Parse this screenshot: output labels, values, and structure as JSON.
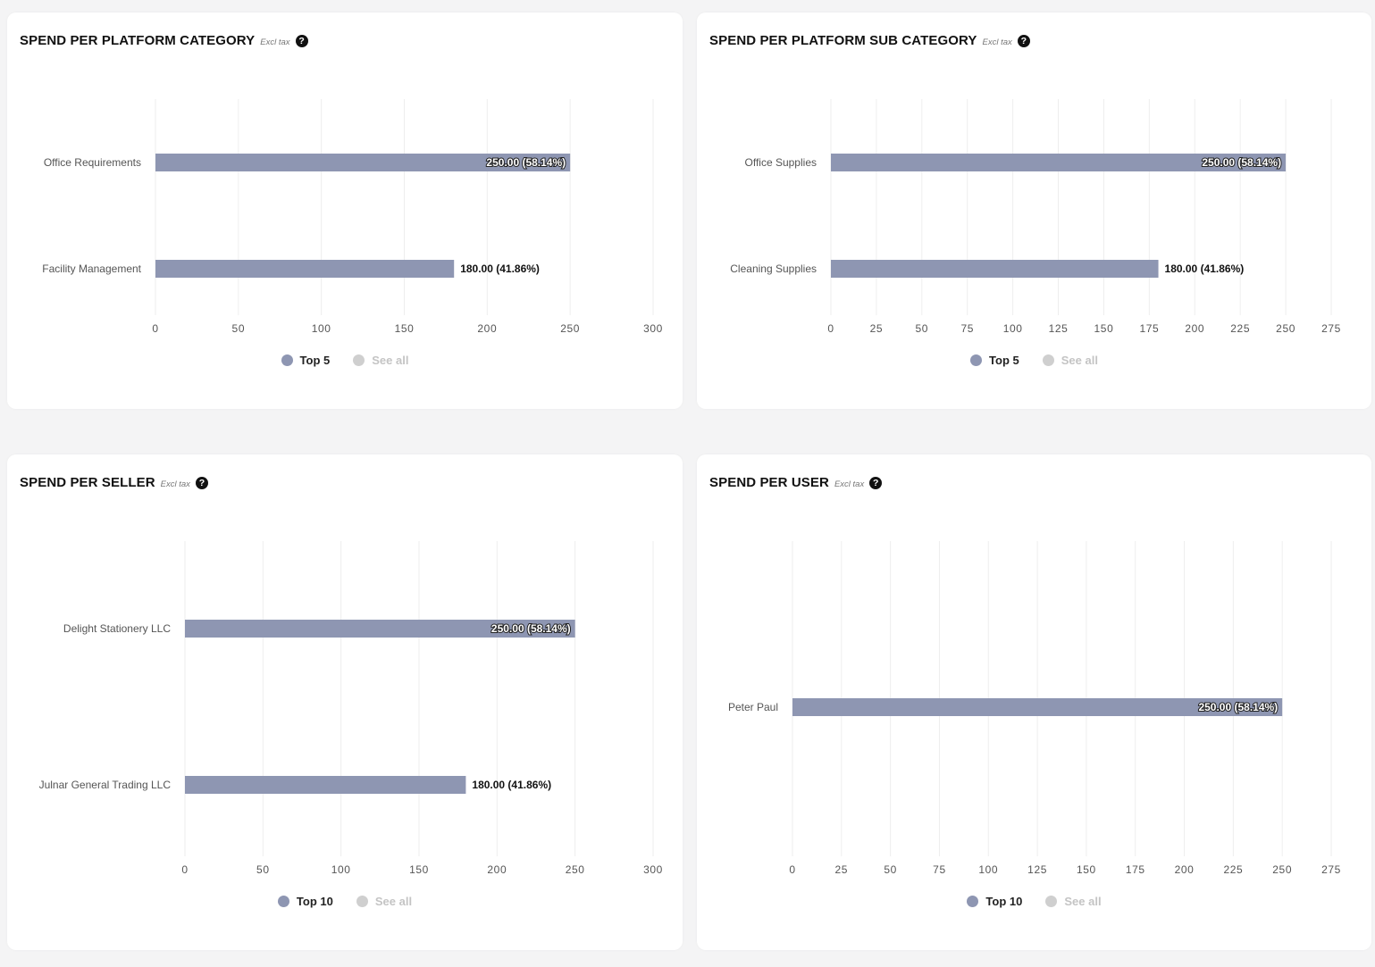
{
  "colors": {
    "bar": "#8e96b2",
    "inactive": "#cfcfcf",
    "grid": "#eeeeee",
    "axis_text": "#555555",
    "label_text": "#555555"
  },
  "panels": [
    {
      "title": "SPEND PER PLATFORM CATEGORY",
      "subtitle": "Excl tax",
      "help_icon": "question-circle-icon",
      "legend": [
        {
          "label": "Top 5",
          "active": true
        },
        {
          "label": "See all",
          "active": false
        }
      ]
    },
    {
      "title": "SPEND PER PLATFORM SUB CATEGORY",
      "subtitle": "Excl tax",
      "help_icon": "question-circle-icon",
      "legend": [
        {
          "label": "Top 5",
          "active": true
        },
        {
          "label": "See all",
          "active": false
        }
      ]
    },
    {
      "title": "SPEND PER SELLER",
      "subtitle": "Excl tax",
      "help_icon": "question-circle-icon",
      "legend": [
        {
          "label": "Top 10",
          "active": true
        },
        {
          "label": "See all",
          "active": false
        }
      ]
    },
    {
      "title": "SPEND PER USER",
      "subtitle": "Excl tax",
      "help_icon": "question-circle-icon",
      "legend": [
        {
          "label": "Top 10",
          "active": true
        },
        {
          "label": "See all",
          "active": false
        }
      ]
    }
  ],
  "chart_data": [
    {
      "type": "bar",
      "orientation": "horizontal",
      "title": "SPEND PER PLATFORM CATEGORY",
      "categories": [
        "Office Requirements",
        "Facility Management"
      ],
      "values": [
        250,
        180
      ],
      "data_labels": [
        "250.00 (58.14%)",
        "180.00 (41.86%)"
      ],
      "xlim": [
        0,
        300
      ],
      "xticks": [
        0,
        50,
        100,
        150,
        200,
        250,
        300
      ],
      "grid": true,
      "legend_placement": "bottom"
    },
    {
      "type": "bar",
      "orientation": "horizontal",
      "title": "SPEND PER PLATFORM SUB CATEGORY",
      "categories": [
        "Office Supplies",
        "Cleaning Supplies"
      ],
      "values": [
        250,
        180
      ],
      "data_labels": [
        "250.00 (58.14%)",
        "180.00 (41.86%)"
      ],
      "xlim": [
        0,
        275
      ],
      "xticks": [
        0,
        25,
        50,
        75,
        100,
        125,
        150,
        175,
        200,
        225,
        250,
        275
      ],
      "grid": true,
      "legend_placement": "bottom"
    },
    {
      "type": "bar",
      "orientation": "horizontal",
      "title": "SPEND PER SELLER",
      "categories": [
        "Delight Stationery LLC",
        "Julnar General Trading LLC"
      ],
      "values": [
        250,
        180
      ],
      "data_labels": [
        "250.00 (58.14%)",
        "180.00 (41.86%)"
      ],
      "xlim": [
        0,
        300
      ],
      "xticks": [
        0,
        50,
        100,
        150,
        200,
        250,
        300
      ],
      "grid": true,
      "legend_placement": "bottom"
    },
    {
      "type": "bar",
      "orientation": "horizontal",
      "title": "SPEND PER USER",
      "categories": [
        "Peter Paul"
      ],
      "values": [
        250
      ],
      "data_labels": [
        "250.00 (58.14%)"
      ],
      "xlim": [
        0,
        275
      ],
      "xticks": [
        0,
        25,
        50,
        75,
        100,
        125,
        150,
        175,
        200,
        225,
        250,
        275
      ],
      "grid": true,
      "legend_placement": "bottom"
    }
  ]
}
